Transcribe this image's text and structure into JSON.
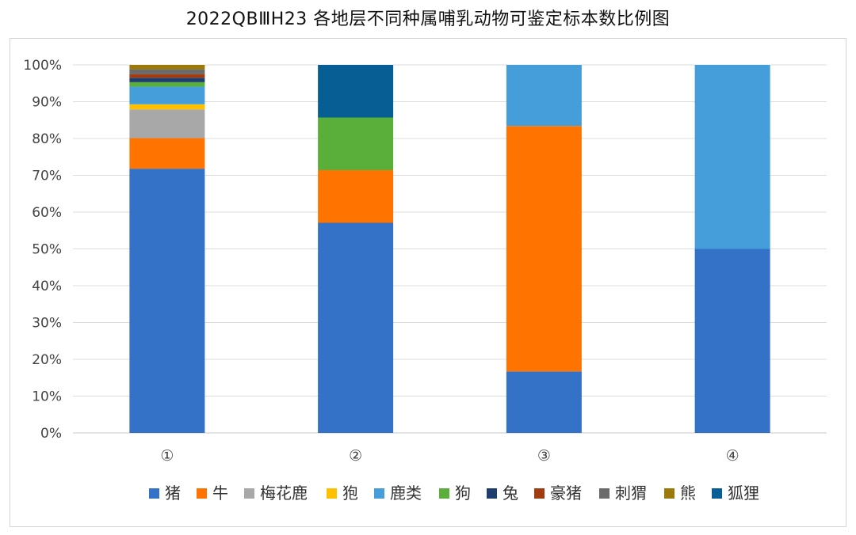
{
  "title": "2022QBⅢH23 各地层不同种属哺乳动物可鉴定标本数比例图",
  "chart_data": {
    "type": "bar",
    "stacked": true,
    "categories": [
      "①",
      "②",
      "③",
      "④"
    ],
    "ylim": [
      0,
      100
    ],
    "yticks": [
      "0%",
      "10%",
      "20%",
      "30%",
      "40%",
      "50%",
      "60%",
      "70%",
      "80%",
      "90%",
      "100%"
    ],
    "grid": true,
    "legend_position": "bottom",
    "series": [
      {
        "name": "猪",
        "color": "#3472C8",
        "values": [
          71.8,
          57.1,
          16.7,
          50.0
        ]
      },
      {
        "name": "牛",
        "color": "#FF7400",
        "values": [
          8.3,
          14.3,
          66.7,
          0
        ]
      },
      {
        "name": "梅花鹿",
        "color": "#A8A8A8",
        "values": [
          7.8,
          0,
          0,
          0
        ]
      },
      {
        "name": "狍",
        "color": "#FFC000",
        "values": [
          1.4,
          0,
          0,
          0
        ]
      },
      {
        "name": "鹿类",
        "color": "#459ED9",
        "values": [
          4.8,
          0,
          16.6,
          50.0
        ]
      },
      {
        "name": "狗",
        "color": "#5AAE3A",
        "values": [
          1.2,
          14.3,
          0,
          0
        ]
      },
      {
        "name": "兔",
        "color": "#1D3E6E",
        "values": [
          1.2,
          0,
          0,
          0
        ]
      },
      {
        "name": "豪猪",
        "color": "#A33B10",
        "values": [
          1.0,
          0,
          0,
          0
        ]
      },
      {
        "name": "刺猬",
        "color": "#6B6B6B",
        "values": [
          1.3,
          0,
          0,
          0
        ]
      },
      {
        "name": "熊",
        "color": "#9C7A0A",
        "values": [
          1.2,
          0,
          0,
          0
        ]
      },
      {
        "name": "狐狸",
        "color": "#065E95",
        "values": [
          0,
          14.3,
          0,
          0
        ]
      }
    ]
  }
}
